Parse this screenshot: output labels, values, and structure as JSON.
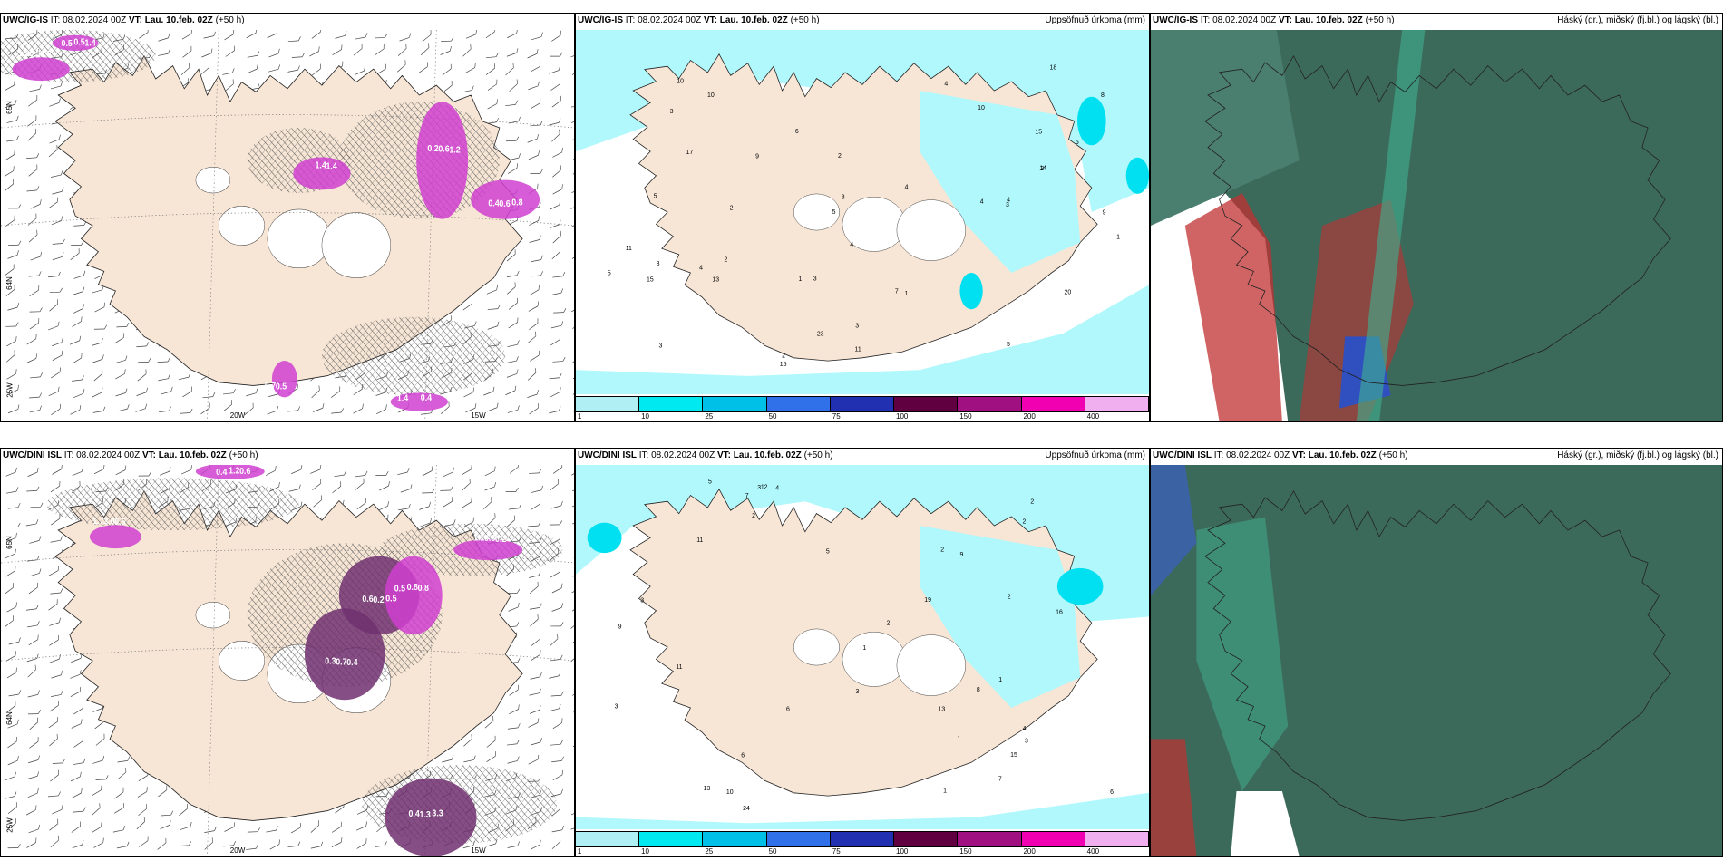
{
  "panels": [
    {
      "model": "UWC/IG-IS",
      "it_label": "IT:",
      "it_value": "08.02.2024 00Z",
      "vt_label": "VT:",
      "vt_value": "Lau. 10.feb. 02Z",
      "lead": "(+50 h)",
      "right_title": "",
      "type": "wind",
      "lon_labels": [
        "25W",
        "20W",
        "15W"
      ],
      "lat_labels": [
        "65N",
        "64N"
      ],
      "values": [
        "1.3",
        "0.5",
        "0.2",
        "0.8",
        "1.4",
        "0.7",
        "0.4",
        "0.5",
        "1.4",
        "0.6",
        "0.4",
        "1.4",
        "0.5",
        "1.4",
        "0.5",
        "0.5",
        "1.2",
        "0.6"
      ]
    },
    {
      "model": "UWC/IG-IS",
      "it_label": "IT:",
      "it_value": "08.02.2024 00Z",
      "vt_label": "VT:",
      "vt_value": "Lau. 10.feb. 02Z",
      "lead": "(+50 h)",
      "right_title": "Uppsöfnuð úrkoma (mm)",
      "type": "precip",
      "values": [
        "4",
        "5",
        "4",
        "4",
        "3",
        "6",
        "5",
        "4",
        "3",
        "9",
        "13",
        "10",
        "2",
        "6",
        "3",
        "8",
        "1",
        "2",
        "5",
        "4",
        "7",
        "3",
        "2",
        "3",
        "1",
        "20",
        "23",
        "17",
        "18",
        "15",
        "14",
        "11",
        "15",
        "10",
        "8",
        "9",
        "10",
        "11",
        "5",
        "3",
        "4",
        "2",
        "1",
        "2",
        "15"
      ]
    },
    {
      "model": "UWC/IG-IS",
      "it_label": "IT:",
      "it_value": "08.02.2024 00Z",
      "vt_label": "VT:",
      "vt_value": "Lau. 10.feb. 02Z",
      "lead": "(+50 h)",
      "right_title": "Háský (gr.), miðský (fj.bl.) og lágský (bl.)",
      "type": "cloud"
    },
    {
      "model": "UWC/DINI ISL",
      "it_label": "IT:",
      "it_value": "08.02.2024 00Z",
      "vt_label": "VT:",
      "vt_value": "Lau. 10.feb. 02Z",
      "lead": "(+50 h)",
      "right_title": "",
      "type": "wind",
      "lon_labels": [
        "25W",
        "20W",
        "15W"
      ],
      "lat_labels": [
        "65N",
        "64N"
      ],
      "values": [
        "1.7",
        "1.2",
        "1.1",
        "0.5",
        "0.8",
        "0.3",
        "3.3",
        "3.0",
        "0.6",
        "0.3",
        "0.6",
        "0.8",
        "0.7",
        "0.4",
        "0.5",
        "0.4",
        "0.2",
        "0.2",
        "0.5",
        "0.4",
        "1.3"
      ]
    },
    {
      "model": "UWC/DINI ISL",
      "it_label": "IT:",
      "it_value": "08.02.2024 00Z",
      "vt_label": "VT:",
      "vt_value": "Lau. 10.feb. 02Z",
      "lead": "(+50 h)",
      "right_title": "Uppsöfnuð úrkoma (mm)",
      "type": "precip",
      "values": [
        "5",
        "7",
        "2",
        "1",
        "11",
        "13",
        "3",
        "24",
        "19",
        "11",
        "6",
        "3",
        "9",
        "1",
        "5",
        "4",
        "2",
        "3",
        "15",
        "16",
        "13",
        "12",
        "10",
        "9",
        "8",
        "7",
        "6",
        "4",
        "3",
        "2",
        "1",
        "2",
        "3",
        "2",
        "1",
        "6",
        "2"
      ]
    },
    {
      "model": "UWC/DINI ISL",
      "it_label": "IT:",
      "it_value": "08.02.2024 00Z",
      "vt_label": "VT:",
      "vt_value": "Lau. 10.feb. 02Z",
      "lead": "(+50 h)",
      "right_title": "Háský (gr.), miðský (fj.bl.) og lágský (bl.)",
      "type": "cloud"
    }
  ],
  "colorbar": {
    "labels": [
      "1",
      "10",
      "25",
      "50",
      "75",
      "100",
      "150",
      "200",
      "400"
    ],
    "colors": [
      "#b0f0f4",
      "#00e8f0",
      "#00c0e8",
      "#3070e8",
      "#2030b0",
      "#600040",
      "#a01080",
      "#f000b0",
      "#f0b0f0"
    ]
  },
  "colors": {
    "land": "#f7e6d6",
    "precip_light": "#b0f8fc",
    "wind_magenta": "#d040d0",
    "wind_purple": "#703070",
    "cloud_dark": "#3c6a5a",
    "cloud_teal": "#40b090",
    "cloud_red": "#c03030"
  }
}
